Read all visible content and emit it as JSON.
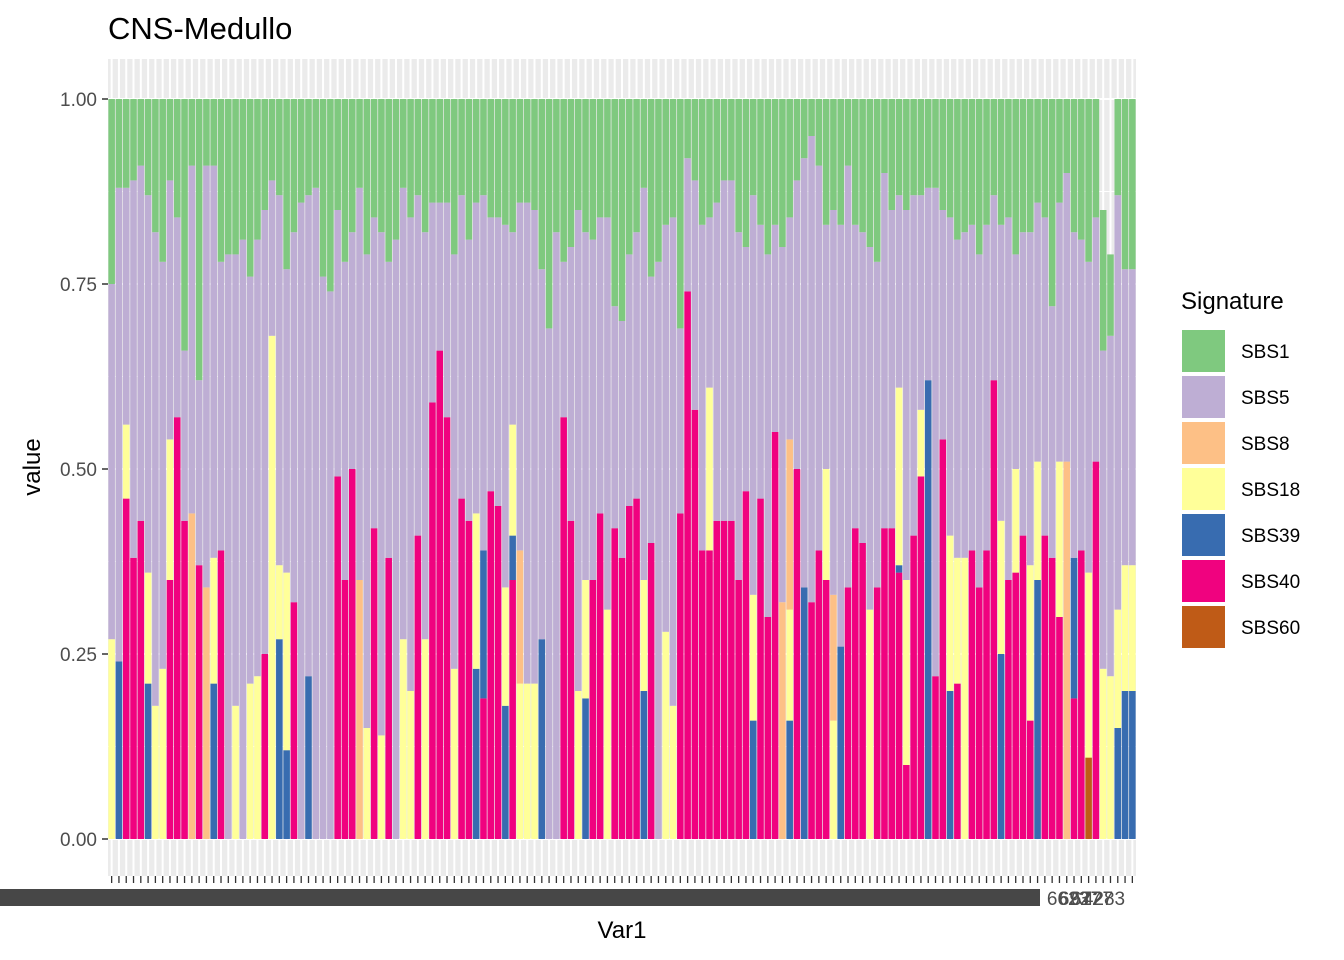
{
  "chart_data": {
    "type": "bar",
    "stacked": true,
    "title": "CNS-Medullo",
    "xlabel": "Var1",
    "ylabel": "value",
    "ylim": [
      0,
      1
    ],
    "yticks": [
      "0.00",
      "0.25",
      "0.50",
      "0.75",
      "1.00"
    ],
    "grid": true,
    "legend": {
      "title": "Signature",
      "position": "right"
    },
    "x_tick_labels_visible": [
      "6623",
      "6927",
      "6727",
      "4283"
    ],
    "categories_count": 146,
    "series": [
      {
        "name": "SBS1",
        "color": "#7FC97F"
      },
      {
        "name": "SBS5",
        "color": "#BEAED4"
      },
      {
        "name": "SBS8",
        "color": "#FDC086"
      },
      {
        "name": "SBS18",
        "color": "#FFFF99"
      },
      {
        "name": "SBS39",
        "color": "#386CB0"
      },
      {
        "name": "SBS40",
        "color": "#F0027F"
      },
      {
        "name": "SBS60",
        "color": "#BF5B17"
      }
    ],
    "stack_order_bottom_to_top": [
      "SBS60",
      "SBS40",
      "SBS39",
      "SBS18",
      "SBS8",
      "SBS5",
      "SBS1"
    ],
    "bars": [
      {
        "SBS1": 0.25,
        "SBS5": 0.48,
        "SBS18": 0.27
      },
      {
        "SBS1": 0.12,
        "SBS5": 0.64,
        "SBS39": 0.24
      },
      {
        "SBS1": 0.12,
        "SBS5": 0.32,
        "SBS18": 0.1,
        "SBS40": 0.46
      },
      {
        "SBS1": 0.11,
        "SBS5": 0.51,
        "SBS40": 0.38
      },
      {
        "SBS1": 0.09,
        "SBS5": 0.48,
        "SBS40": 0.43
      },
      {
        "SBS1": 0.13,
        "SBS5": 0.51,
        "SBS18": 0.15,
        "SBS39": 0.21
      },
      {
        "SBS1": 0.18,
        "SBS5": 0.64,
        "SBS18": 0.18
      },
      {
        "SBS1": 0.22,
        "SBS5": 0.55,
        "SBS18": 0.23
      },
      {
        "SBS1": 0.11,
        "SBS5": 0.35,
        "SBS18": 0.19,
        "SBS40": 0.35
      },
      {
        "SBS1": 0.16,
        "SBS5": 0.27,
        "SBS40": 0.57
      },
      {
        "SBS1": 0.34,
        "SBS5": 0.23,
        "SBS40": 0.43
      },
      {
        "SBS1": 0.09,
        "SBS5": 0.47,
        "SBS8": 0.44
      },
      {
        "SBS1": 0.38,
        "SBS5": 0.25,
        "SBS40": 0.37
      },
      {
        "SBS1": 0.09,
        "SBS5": 0.57,
        "SBS8": 0.34
      },
      {
        "SBS1": 0.09,
        "SBS5": 0.53,
        "SBS18": 0.17,
        "SBS39": 0.21
      },
      {
        "SBS1": 0.22,
        "SBS5": 0.39,
        "SBS40": 0.39
      },
      {
        "SBS1": 0.21,
        "SBS5": 0.79
      },
      {
        "SBS1": 0.21,
        "SBS5": 0.61,
        "SBS18": 0.18
      },
      {
        "SBS1": 0.19,
        "SBS5": 0.81
      },
      {
        "SBS1": 0.24,
        "SBS5": 0.55,
        "SBS18": 0.21
      },
      {
        "SBS1": 0.19,
        "SBS5": 0.59,
        "SBS18": 0.22
      },
      {
        "SBS1": 0.15,
        "SBS5": 0.6,
        "SBS40": 0.25
      },
      {
        "SBS1": 0.11,
        "SBS5": 0.21,
        "SBS18": 0.68
      },
      {
        "SBS1": 0.13,
        "SBS5": 0.5,
        "SBS18": 0.1,
        "SBS39": 0.27
      },
      {
        "SBS1": 0.23,
        "SBS5": 0.41,
        "SBS18": 0.24,
        "SBS39": 0.12
      },
      {
        "SBS1": 0.18,
        "SBS5": 0.5,
        "SBS40": 0.32
      },
      {
        "SBS1": 0.14,
        "SBS5": 0.86
      },
      {
        "SBS1": 0.13,
        "SBS5": 0.65,
        "SBS39": 0.22
      },
      {
        "SBS1": 0.12,
        "SBS5": 0.88
      },
      {
        "SBS1": 0.24,
        "SBS5": 0.76
      },
      {
        "SBS1": 0.26,
        "SBS5": 0.74
      },
      {
        "SBS1": 0.15,
        "SBS5": 0.36,
        "SBS40": 0.49
      },
      {
        "SBS1": 0.22,
        "SBS5": 0.43,
        "SBS40": 0.35
      },
      {
        "SBS1": 0.18,
        "SBS5": 0.32,
        "SBS40": 0.5
      },
      {
        "SBS1": 0.12,
        "SBS5": 0.53,
        "SBS8": 0.35
      },
      {
        "SBS1": 0.21,
        "SBS5": 0.64,
        "SBS18": 0.15
      },
      {
        "SBS1": 0.16,
        "SBS5": 0.42,
        "SBS40": 0.42
      },
      {
        "SBS1": 0.18,
        "SBS5": 0.68,
        "SBS18": 0.14
      },
      {
        "SBS1": 0.22,
        "SBS5": 0.4,
        "SBS40": 0.38
      },
      {
        "SBS1": 0.19,
        "SBS5": 0.81
      },
      {
        "SBS1": 0.12,
        "SBS5": 0.61,
        "SBS18": 0.27
      },
      {
        "SBS1": 0.16,
        "SBS5": 0.64,
        "SBS18": 0.2
      },
      {
        "SBS1": 0.13,
        "SBS5": 0.46,
        "SBS40": 0.41
      },
      {
        "SBS1": 0.18,
        "SBS5": 0.55,
        "SBS18": 0.27
      },
      {
        "SBS1": 0.14,
        "SBS5": 0.27,
        "SBS40": 0.59
      },
      {
        "SBS1": 0.14,
        "SBS5": 0.2,
        "SBS40": 0.66
      },
      {
        "SBS1": 0.14,
        "SBS5": 0.29,
        "SBS40": 0.57
      },
      {
        "SBS1": 0.21,
        "SBS5": 0.56,
        "SBS18": 0.23
      },
      {
        "SBS1": 0.13,
        "SBS5": 0.41,
        "SBS40": 0.46
      },
      {
        "SBS1": 0.19,
        "SBS5": 0.38,
        "SBS40": 0.43
      },
      {
        "SBS1": 0.14,
        "SBS5": 0.42,
        "SBS18": 0.21,
        "SBS39": 0.23
      },
      {
        "SBS1": 0.13,
        "SBS5": 0.48,
        "SBS39": 0.2,
        "SBS40": 0.19
      },
      {
        "SBS1": 0.16,
        "SBS5": 0.37,
        "SBS40": 0.47
      },
      {
        "SBS1": 0.16,
        "SBS5": 0.39,
        "SBS40": 0.45
      },
      {
        "SBS1": 0.17,
        "SBS5": 0.49,
        "SBS18": 0.16,
        "SBS39": 0.18
      },
      {
        "SBS1": 0.18,
        "SBS5": 0.26,
        "SBS18": 0.15,
        "SBS39": 0.06,
        "SBS40": 0.35
      },
      {
        "SBS1": 0.14,
        "SBS5": 0.47,
        "SBS8": 0.18,
        "SBS18": 0.21
      },
      {
        "SBS1": 0.14,
        "SBS5": 0.65,
        "SBS18": 0.21
      },
      {
        "SBS1": 0.15,
        "SBS5": 0.64,
        "SBS18": 0.21
      },
      {
        "SBS1": 0.23,
        "SBS5": 0.5,
        "SBS39": 0.27
      },
      {
        "SBS1": 0.31,
        "SBS5": 0.69
      },
      {
        "SBS1": 0.18,
        "SBS5": 0.82
      },
      {
        "SBS1": 0.22,
        "SBS5": 0.21,
        "SBS40": 0.57
      },
      {
        "SBS1": 0.2,
        "SBS5": 0.37,
        "SBS40": 0.43
      },
      {
        "SBS1": 0.15,
        "SBS5": 0.65,
        "SBS18": 0.2
      },
      {
        "SBS1": 0.18,
        "SBS5": 0.47,
        "SBS18": 0.16,
        "SBS39": 0.19
      },
      {
        "SBS1": 0.19,
        "SBS5": 0.46,
        "SBS40": 0.35
      },
      {
        "SBS1": 0.16,
        "SBS5": 0.4,
        "SBS40": 0.44
      },
      {
        "SBS1": 0.16,
        "SBS5": 0.53,
        "SBS18": 0.31
      },
      {
        "SBS1": 0.28,
        "SBS5": 0.3,
        "SBS40": 0.42
      },
      {
        "SBS1": 0.3,
        "SBS5": 0.32,
        "SBS40": 0.38
      },
      {
        "SBS1": 0.21,
        "SBS5": 0.34,
        "SBS40": 0.45
      },
      {
        "SBS1": 0.18,
        "SBS5": 0.36,
        "SBS40": 0.46
      },
      {
        "SBS1": 0.12,
        "SBS5": 0.53,
        "SBS18": 0.15,
        "SBS39": 0.2
      },
      {
        "SBS1": 0.24,
        "SBS5": 0.36,
        "SBS40": 0.4
      },
      {
        "SBS1": 0.22,
        "SBS5": 0.78
      },
      {
        "SBS1": 0.17,
        "SBS5": 0.55,
        "SBS18": 0.28
      },
      {
        "SBS1": 0.16,
        "SBS5": 0.66,
        "SBS18": 0.18
      },
      {
        "SBS1": 0.31,
        "SBS5": 0.25,
        "SBS40": 0.44
      },
      {
        "SBS1": 0.08,
        "SBS5": 0.18,
        "SBS40": 0.74
      },
      {
        "SBS1": 0.11,
        "SBS5": 0.31,
        "SBS40": 0.58
      },
      {
        "SBS1": 0.17,
        "SBS5": 0.44,
        "SBS40": 0.39
      },
      {
        "SBS1": 0.16,
        "SBS5": 0.23,
        "SBS18": 0.22,
        "SBS40": 0.39
      },
      {
        "SBS1": 0.14,
        "SBS5": 0.43,
        "SBS40": 0.43
      },
      {
        "SBS1": 0.11,
        "SBS5": 0.46,
        "SBS40": 0.43
      },
      {
        "SBS1": 0.11,
        "SBS5": 0.46,
        "SBS40": 0.43
      },
      {
        "SBS1": 0.18,
        "SBS5": 0.47,
        "SBS40": 0.35
      },
      {
        "SBS1": 0.2,
        "SBS5": 0.33,
        "SBS40": 0.47
      },
      {
        "SBS1": 0.13,
        "SBS5": 0.54,
        "SBS18": 0.17,
        "SBS39": 0.16
      },
      {
        "SBS1": 0.17,
        "SBS5": 0.37,
        "SBS40": 0.46
      },
      {
        "SBS1": 0.21,
        "SBS5": 0.49,
        "SBS40": 0.3
      },
      {
        "SBS1": 0.17,
        "SBS5": 0.28,
        "SBS40": 0.55
      },
      {
        "SBS1": 0.2,
        "SBS5": 0.48,
        "SBS8": 0.32
      },
      {
        "SBS1": 0.16,
        "SBS5": 0.3,
        "SBS8": 0.23,
        "SBS18": 0.15,
        "SBS39": 0.16
      },
      {
        "SBS1": 0.11,
        "SBS5": 0.39,
        "SBS40": 0.5
      },
      {
        "SBS1": 0.08,
        "SBS5": 0.58,
        "SBS39": 0.34
      },
      {
        "SBS1": 0.05,
        "SBS5": 0.63,
        "SBS40": 0.32
      },
      {
        "SBS1": 0.09,
        "SBS5": 0.52,
        "SBS40": 0.39
      },
      {
        "SBS1": 0.17,
        "SBS5": 0.33,
        "SBS18": 0.15,
        "SBS40": 0.35
      },
      {
        "SBS1": 0.15,
        "SBS5": 0.52,
        "SBS8": 0.17,
        "SBS18": 0.16
      },
      {
        "SBS1": 0.17,
        "SBS5": 0.57,
        "SBS39": 0.26
      },
      {
        "SBS1": 0.09,
        "SBS5": 0.57,
        "SBS40": 0.34
      },
      {
        "SBS1": 0.17,
        "SBS5": 0.41,
        "SBS40": 0.42
      },
      {
        "SBS1": 0.18,
        "SBS5": 0.42,
        "SBS40": 0.4
      },
      {
        "SBS1": 0.2,
        "SBS5": 0.49,
        "SBS18": 0.31
      },
      {
        "SBS1": 0.22,
        "SBS5": 0.44,
        "SBS40": 0.34
      },
      {
        "SBS1": 0.1,
        "SBS5": 0.48,
        "SBS40": 0.42
      },
      {
        "SBS1": 0.15,
        "SBS5": 0.43,
        "SBS40": 0.42
      },
      {
        "SBS1": 0.13,
        "SBS5": 0.26,
        "SBS18": 0.24,
        "SBS39": 0.01,
        "SBS40": 0.36
      },
      {
        "SBS1": 0.15,
        "SBS5": 0.5,
        "SBS18": 0.25,
        "SBS40": 0.1
      },
      {
        "SBS1": 0.13,
        "SBS5": 0.46,
        "SBS40": 0.41
      },
      {
        "SBS1": 0.13,
        "SBS5": 0.29,
        "SBS18": 0.09,
        "SBS40": 0.49
      },
      {
        "SBS1": 0.12,
        "SBS5": 0.26,
        "SBS39": 0.62
      },
      {
        "SBS1": 0.12,
        "SBS5": 0.66,
        "SBS40": 0.22
      },
      {
        "SBS1": 0.15,
        "SBS5": 0.31,
        "SBS40": 0.54
      },
      {
        "SBS1": 0.16,
        "SBS5": 0.43,
        "SBS18": 0.21,
        "SBS39": 0.2
      },
      {
        "SBS1": 0.19,
        "SBS5": 0.43,
        "SBS18": 0.17,
        "SBS40": 0.21
      },
      {
        "SBS1": 0.18,
        "SBS5": 0.44,
        "SBS18": 0.38
      },
      {
        "SBS1": 0.17,
        "SBS5": 0.44,
        "SBS40": 0.39
      },
      {
        "SBS1": 0.21,
        "SBS5": 0.45,
        "SBS40": 0.34
      },
      {
        "SBS1": 0.17,
        "SBS5": 0.44,
        "SBS40": 0.39
      },
      {
        "SBS1": 0.13,
        "SBS5": 0.25,
        "SBS40": 0.62
      },
      {
        "SBS1": 0.17,
        "SBS5": 0.4,
        "SBS18": 0.18,
        "SBS39": 0.25
      },
      {
        "SBS1": 0.16,
        "SBS5": 0.49,
        "SBS40": 0.35
      },
      {
        "SBS1": 0.21,
        "SBS5": 0.29,
        "SBS18": 0.14,
        "SBS40": 0.36
      },
      {
        "SBS1": 0.18,
        "SBS5": 0.41,
        "SBS40": 0.41
      },
      {
        "SBS1": 0.18,
        "SBS5": 0.45,
        "SBS18": 0.21,
        "SBS40": 0.16
      },
      {
        "SBS1": 0.14,
        "SBS5": 0.35,
        "SBS18": 0.16,
        "SBS39": 0.35
      },
      {
        "SBS1": 0.16,
        "SBS5": 0.43,
        "SBS40": 0.41
      },
      {
        "SBS1": 0.28,
        "SBS5": 0.34,
        "SBS40": 0.38
      },
      {
        "SBS1": 0.14,
        "SBS5": 0.35,
        "SBS18": 0.21,
        "SBS40": 0.3
      },
      {
        "SBS1": 0.1,
        "SBS5": 0.39,
        "SBS8": 0.51
      },
      {
        "SBS1": 0.18,
        "SBS5": 0.44,
        "SBS39": 0.19,
        "SBS40": 0.19
      },
      {
        "SBS1": 0.19,
        "SBS5": 0.42,
        "SBS40": 0.39
      },
      {
        "SBS1": 0.22,
        "SBS5": 0.42,
        "SBS18": 0.25,
        "SBS60": 0.11
      },
      {
        "SBS1": 0.16,
        "SBS5": 0.33,
        "SBS40": 0.51
      },
      {
        "SBS1": 0.19,
        "SBS5": 0.43,
        "SBS18": 0.23
      },
      {
        "SBS1": 0.11,
        "SBS5": 0.46,
        "SBS18": 0.22
      },
      {
        "SBS1": 0.13,
        "SBS5": 0.56,
        "SBS18": 0.16,
        "SBS39": 0.15
      },
      {
        "SBS1": 0.23,
        "SBS5": 0.4,
        "SBS18": 0.17,
        "SBS39": 0.2
      },
      {
        "SBS1": 0.23,
        "SBS5": 0.4,
        "SBS18": 0.17,
        "SBS39": 0.2
      }
    ]
  }
}
